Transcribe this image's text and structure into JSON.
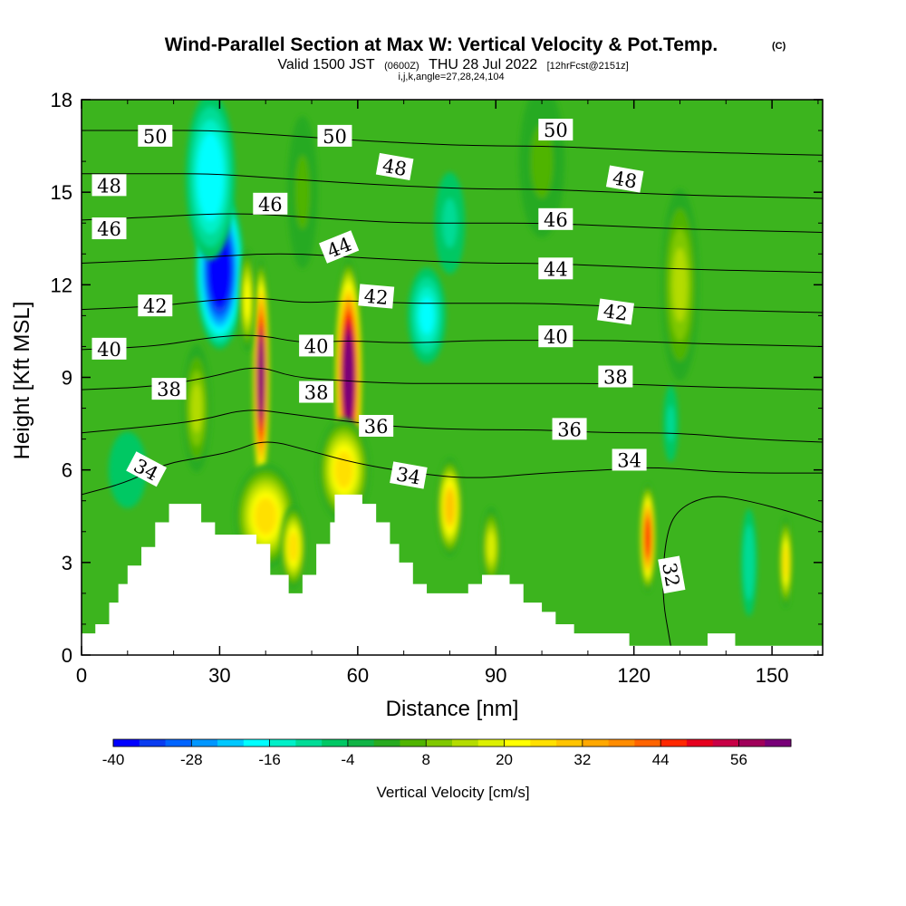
{
  "title": {
    "main": "Wind-Parallel Section at Max W: Vertical Velocity & Pot.Temp.",
    "copyright": "(C)",
    "valid_prefix": "Valid 1500 JST",
    "valid_utc": "(0600Z)",
    "valid_date": "THU 28 Jul 2022",
    "forecast": "[12hrFcst@2151z]",
    "indices": "i,j,k,angle=27,28,24,104"
  },
  "chart_data": {
    "type": "heatmap",
    "title": "Wind-Parallel Section at Max W: Vertical Velocity & Pot.Temp.",
    "xlabel": "Distance [nm]",
    "ylabel": "Height [Kft MSL]",
    "xlim": [
      0,
      161
    ],
    "ylim": [
      0,
      18
    ],
    "x_ticks": [
      "0",
      "30",
      "60",
      "90",
      "120",
      "150"
    ],
    "y_ticks": [
      "0",
      "3",
      "6",
      "9",
      "12",
      "15",
      "18"
    ],
    "colorbar": {
      "label": "Vertical Velocity [cm/s]",
      "tick_labels": [
        "-40",
        "-28",
        "-16",
        "-4",
        "8",
        "20",
        "32",
        "44",
        "56"
      ],
      "min": -40,
      "max": 60,
      "step": 4,
      "colors": [
        "#0000ff",
        "#0a3cf0",
        "#0064ff",
        "#0096ff",
        "#00c8ff",
        "#00ffff",
        "#00f0c8",
        "#00dc96",
        "#00c864",
        "#10b446",
        "#28aa20",
        "#50b400",
        "#80c800",
        "#b4dc00",
        "#dcf000",
        "#ffff00",
        "#ffe000",
        "#ffc400",
        "#ffa800",
        "#ff8c00",
        "#ff6400",
        "#ff2800",
        "#e6001e",
        "#c80046",
        "#a0005a",
        "#780078"
      ]
    },
    "velocity_cells": [
      {
        "x": 30,
        "y": 12.5,
        "sx": 4.5,
        "sy": 2.2,
        "v": -45
      },
      {
        "x": 28,
        "y": 15.5,
        "sx": 5,
        "sy": 2.5,
        "v": -20
      },
      {
        "x": 75,
        "y": 11,
        "sx": 4,
        "sy": 1.5,
        "v": -18
      },
      {
        "x": 80,
        "y": 14,
        "sx": 4,
        "sy": 2,
        "v": -10
      },
      {
        "x": 39,
        "y": 9,
        "sx": 1.6,
        "sy": 3.2,
        "v": 60
      },
      {
        "x": 40,
        "y": 4.5,
        "sx": 6,
        "sy": 1.5,
        "v": 25
      },
      {
        "x": 46,
        "y": 3.5,
        "sx": 2.5,
        "sy": 1.2,
        "v": 25
      },
      {
        "x": 58,
        "y": 9,
        "sx": 2.6,
        "sy": 3.2,
        "v": 65
      },
      {
        "x": 57,
        "y": 6,
        "sx": 5,
        "sy": 1.5,
        "v": 25
      },
      {
        "x": 36,
        "y": 11.5,
        "sx": 1.5,
        "sy": 1.5,
        "v": 20
      },
      {
        "x": 25,
        "y": 8,
        "sx": 3,
        "sy": 2,
        "v": 14
      },
      {
        "x": 80,
        "y": 4.8,
        "sx": 2.5,
        "sy": 1.4,
        "v": 30
      },
      {
        "x": 89,
        "y": 3.5,
        "sx": 2,
        "sy": 1.2,
        "v": 18
      },
      {
        "x": 123,
        "y": 3.8,
        "sx": 1.5,
        "sy": 1.5,
        "v": 45
      },
      {
        "x": 130,
        "y": 12,
        "sx": 4,
        "sy": 3,
        "v": 12
      },
      {
        "x": 153,
        "y": 3,
        "sx": 1.3,
        "sy": 1.3,
        "v": 25
      },
      {
        "x": 145,
        "y": 3,
        "sx": 1.8,
        "sy": 1.8,
        "v": -12
      },
      {
        "x": 128,
        "y": 7.5,
        "sx": 2,
        "sy": 1.5,
        "v": -10
      },
      {
        "x": 10,
        "y": 6,
        "sx": 5,
        "sy": 1.5,
        "v": -8
      },
      {
        "x": 48,
        "y": 15,
        "sx": 4,
        "sy": 3,
        "v": 6
      },
      {
        "x": 100,
        "y": 16,
        "sx": 6,
        "sy": 3,
        "v": 6
      }
    ],
    "terrain": [
      {
        "x": 0,
        "y": 0.7
      },
      {
        "x": 3,
        "y": 0.7
      },
      {
        "x": 3,
        "y": 1.0
      },
      {
        "x": 6,
        "y": 1.0
      },
      {
        "x": 6,
        "y": 1.7
      },
      {
        "x": 8,
        "y": 1.7
      },
      {
        "x": 8,
        "y": 2.3
      },
      {
        "x": 10,
        "y": 2.3
      },
      {
        "x": 10,
        "y": 2.9
      },
      {
        "x": 13,
        "y": 2.9
      },
      {
        "x": 13,
        "y": 3.5
      },
      {
        "x": 16,
        "y": 3.5
      },
      {
        "x": 16,
        "y": 4.3
      },
      {
        "x": 19,
        "y": 4.3
      },
      {
        "x": 19,
        "y": 4.9
      },
      {
        "x": 26,
        "y": 4.9
      },
      {
        "x": 26,
        "y": 4.3
      },
      {
        "x": 29,
        "y": 4.3
      },
      {
        "x": 29,
        "y": 3.9
      },
      {
        "x": 38,
        "y": 3.9
      },
      {
        "x": 38,
        "y": 3.6
      },
      {
        "x": 41,
        "y": 3.6
      },
      {
        "x": 41,
        "y": 2.6
      },
      {
        "x": 45,
        "y": 2.6
      },
      {
        "x": 45,
        "y": 2.0
      },
      {
        "x": 48,
        "y": 2.0
      },
      {
        "x": 48,
        "y": 2.6
      },
      {
        "x": 51,
        "y": 2.6
      },
      {
        "x": 51,
        "y": 3.6
      },
      {
        "x": 54,
        "y": 3.6
      },
      {
        "x": 54,
        "y": 4.3
      },
      {
        "x": 55,
        "y": 4.3
      },
      {
        "x": 55,
        "y": 5.2
      },
      {
        "x": 61,
        "y": 5.2
      },
      {
        "x": 61,
        "y": 4.9
      },
      {
        "x": 64,
        "y": 4.9
      },
      {
        "x": 64,
        "y": 4.3
      },
      {
        "x": 67,
        "y": 4.3
      },
      {
        "x": 67,
        "y": 3.6
      },
      {
        "x": 69,
        "y": 3.6
      },
      {
        "x": 69,
        "y": 3.0
      },
      {
        "x": 72,
        "y": 3.0
      },
      {
        "x": 72,
        "y": 2.3
      },
      {
        "x": 75,
        "y": 2.3
      },
      {
        "x": 75,
        "y": 2.0
      },
      {
        "x": 84,
        "y": 2.0
      },
      {
        "x": 84,
        "y": 2.3
      },
      {
        "x": 87,
        "y": 2.3
      },
      {
        "x": 87,
        "y": 2.6
      },
      {
        "x": 93,
        "y": 2.6
      },
      {
        "x": 93,
        "y": 2.3
      },
      {
        "x": 96,
        "y": 2.3
      },
      {
        "x": 96,
        "y": 1.7
      },
      {
        "x": 100,
        "y": 1.7
      },
      {
        "x": 100,
        "y": 1.4
      },
      {
        "x": 103,
        "y": 1.4
      },
      {
        "x": 103,
        "y": 1.0
      },
      {
        "x": 107,
        "y": 1.0
      },
      {
        "x": 107,
        "y": 0.7
      },
      {
        "x": 110,
        "y": 0.7
      },
      {
        "x": 110,
        "y": 0.7
      },
      {
        "x": 119,
        "y": 0.7
      },
      {
        "x": 119,
        "y": 0.3
      },
      {
        "x": 136,
        "y": 0.3
      },
      {
        "x": 136,
        "y": 0.7
      },
      {
        "x": 142,
        "y": 0.7
      },
      {
        "x": 142,
        "y": 0.3
      },
      {
        "x": 161,
        "y": 0.3
      },
      {
        "x": 161,
        "y": 0
      },
      {
        "x": 0,
        "y": 0
      }
    ],
    "theta_contours": [
      {
        "value": 32,
        "label": "32",
        "label_x": 128,
        "label_y": 2.6,
        "rotate": -80,
        "points": [
          [
            128,
            0.3
          ],
          [
            126,
            2
          ],
          [
            127,
            4
          ],
          [
            130,
            4.8
          ],
          [
            137,
            5.2
          ],
          [
            145,
            5.0
          ],
          [
            155,
            4.6
          ],
          [
            161,
            4.3
          ]
        ]
      },
      {
        "value": 34,
        "label": "34",
        "label_x": 14,
        "label_y": 6.0,
        "rotate": -28,
        "points": [
          [
            0,
            5.2
          ],
          [
            10,
            5.6
          ],
          [
            18,
            6.2
          ],
          [
            26,
            6.4
          ],
          [
            33,
            6.6
          ],
          [
            40,
            7.0
          ],
          [
            50,
            6.6
          ],
          [
            60,
            6.2
          ],
          [
            72,
            5.9
          ],
          [
            85,
            5.7
          ],
          [
            100,
            5.9
          ],
          [
            114,
            6.0
          ],
          [
            125,
            6.1
          ],
          [
            140,
            5.9
          ],
          [
            161,
            5.9
          ]
        ]
      },
      {
        "value": 36,
        "label": "36",
        "label_x": 64,
        "label_y": 7.4,
        "rotate": 0,
        "points": [
          [
            0,
            7.2
          ],
          [
            14,
            7.4
          ],
          [
            26,
            7.6
          ],
          [
            36,
            8.0
          ],
          [
            46,
            7.8
          ],
          [
            56,
            7.6
          ],
          [
            68,
            7.4
          ],
          [
            84,
            7.3
          ],
          [
            100,
            7.3
          ],
          [
            114,
            7.2
          ],
          [
            130,
            7.2
          ],
          [
            145,
            7.0
          ],
          [
            161,
            6.9
          ]
        ]
      },
      {
        "value": 38,
        "label": "38",
        "label_x": 19,
        "label_y": 8.6,
        "rotate": 0,
        "points": [
          [
            0,
            8.6
          ],
          [
            16,
            8.7
          ],
          [
            28,
            9.0
          ],
          [
            38,
            9.4
          ],
          [
            46,
            9.0
          ],
          [
            56,
            8.9
          ],
          [
            68,
            8.8
          ],
          [
            84,
            8.8
          ],
          [
            100,
            8.8
          ],
          [
            116,
            8.8
          ],
          [
            132,
            8.7
          ],
          [
            161,
            8.6
          ]
        ]
      },
      {
        "value": 40,
        "label": "40",
        "label_x": 6,
        "label_y": 9.9,
        "rotate": 0,
        "points": [
          [
            0,
            9.9
          ],
          [
            16,
            10.0
          ],
          [
            28,
            10.3
          ],
          [
            38,
            10.4
          ],
          [
            48,
            10.1
          ],
          [
            58,
            10.2
          ],
          [
            70,
            10.1
          ],
          [
            86,
            10.2
          ],
          [
            100,
            10.2
          ],
          [
            116,
            10.2
          ],
          [
            132,
            10.1
          ],
          [
            161,
            10.0
          ]
        ]
      },
      {
        "value": 42,
        "label": "42",
        "label_x": 16,
        "label_y": 11.3,
        "rotate": 0,
        "points": [
          [
            0,
            11.2
          ],
          [
            16,
            11.3
          ],
          [
            28,
            11.5
          ],
          [
            38,
            11.6
          ],
          [
            48,
            11.4
          ],
          [
            58,
            11.5
          ],
          [
            70,
            11.4
          ],
          [
            86,
            11.4
          ],
          [
            100,
            11.4
          ],
          [
            116,
            11.3
          ],
          [
            132,
            11.2
          ],
          [
            161,
            11.1
          ]
        ]
      },
      {
        "value": 44,
        "label": "44",
        "label_x": 56,
        "label_y": 13.2,
        "rotate": 22,
        "points": [
          [
            0,
            12.7
          ],
          [
            16,
            12.8
          ],
          [
            28,
            12.9
          ],
          [
            38,
            13.0
          ],
          [
            48,
            13.0
          ],
          [
            58,
            12.9
          ],
          [
            70,
            12.8
          ],
          [
            86,
            12.7
          ],
          [
            100,
            12.7
          ],
          [
            116,
            12.6
          ],
          [
            132,
            12.5
          ],
          [
            161,
            12.4
          ]
        ]
      },
      {
        "value": 46,
        "label": "46",
        "label_x": 6,
        "label_y": 13.8,
        "rotate": 0,
        "points": [
          [
            0,
            14.1
          ],
          [
            16,
            14.2
          ],
          [
            28,
            14.3
          ],
          [
            38,
            14.3
          ],
          [
            48,
            14.2
          ],
          [
            58,
            14.1
          ],
          [
            70,
            14.0
          ],
          [
            86,
            14.0
          ],
          [
            100,
            14.0
          ],
          [
            116,
            13.9
          ],
          [
            132,
            13.8
          ],
          [
            161,
            13.7
          ]
        ]
      },
      {
        "value": 48,
        "label": "48",
        "label_x": 6,
        "label_y": 15.2,
        "rotate": 0,
        "points": [
          [
            0,
            15.6
          ],
          [
            16,
            15.6
          ],
          [
            28,
            15.6
          ],
          [
            38,
            15.5
          ],
          [
            48,
            15.4
          ],
          [
            58,
            15.3
          ],
          [
            70,
            15.2
          ],
          [
            86,
            15.1
          ],
          [
            100,
            15.1
          ],
          [
            116,
            15.0
          ],
          [
            132,
            14.9
          ],
          [
            161,
            14.8
          ]
        ]
      },
      {
        "value": 50,
        "label": "50",
        "label_x": 16,
        "label_y": 16.8,
        "rotate": 0,
        "points": [
          [
            0,
            17.0
          ],
          [
            16,
            17.0
          ],
          [
            28,
            17.0
          ],
          [
            38,
            16.9
          ],
          [
            48,
            16.8
          ],
          [
            58,
            16.7
          ],
          [
            70,
            16.6
          ],
          [
            86,
            16.5
          ],
          [
            100,
            16.5
          ],
          [
            116,
            16.4
          ],
          [
            132,
            16.3
          ],
          [
            161,
            16.2
          ]
        ]
      }
    ],
    "extra_contour_labels": [
      {
        "label": "50",
        "x": 55,
        "y": 16.8,
        "rotate": 0
      },
      {
        "label": "50",
        "x": 103,
        "y": 17.0,
        "rotate": 0
      },
      {
        "label": "48",
        "x": 68,
        "y": 15.8,
        "rotate": -10
      },
      {
        "label": "48",
        "x": 118,
        "y": 15.4,
        "rotate": -10
      },
      {
        "label": "46",
        "x": 41,
        "y": 14.6,
        "rotate": 0
      },
      {
        "label": "46",
        "x": 103,
        "y": 14.1,
        "rotate": 0
      },
      {
        "label": "44",
        "x": 103,
        "y": 12.5,
        "rotate": 0
      },
      {
        "label": "42",
        "x": 64,
        "y": 11.6,
        "rotate": -5
      },
      {
        "label": "42",
        "x": 116,
        "y": 11.1,
        "rotate": -8
      },
      {
        "label": "40",
        "x": 51,
        "y": 10.0,
        "rotate": 0
      },
      {
        "label": "40",
        "x": 103,
        "y": 10.3,
        "rotate": 0
      },
      {
        "label": "38",
        "x": 51,
        "y": 8.5,
        "rotate": 0
      },
      {
        "label": "38",
        "x": 116,
        "y": 9.0,
        "rotate": 0
      },
      {
        "label": "36",
        "x": 106,
        "y": 7.3,
        "rotate": 0
      },
      {
        "label": "34",
        "x": 71,
        "y": 5.8,
        "rotate": -10
      },
      {
        "label": "34",
        "x": 119,
        "y": 6.3,
        "rotate": 0
      }
    ]
  }
}
